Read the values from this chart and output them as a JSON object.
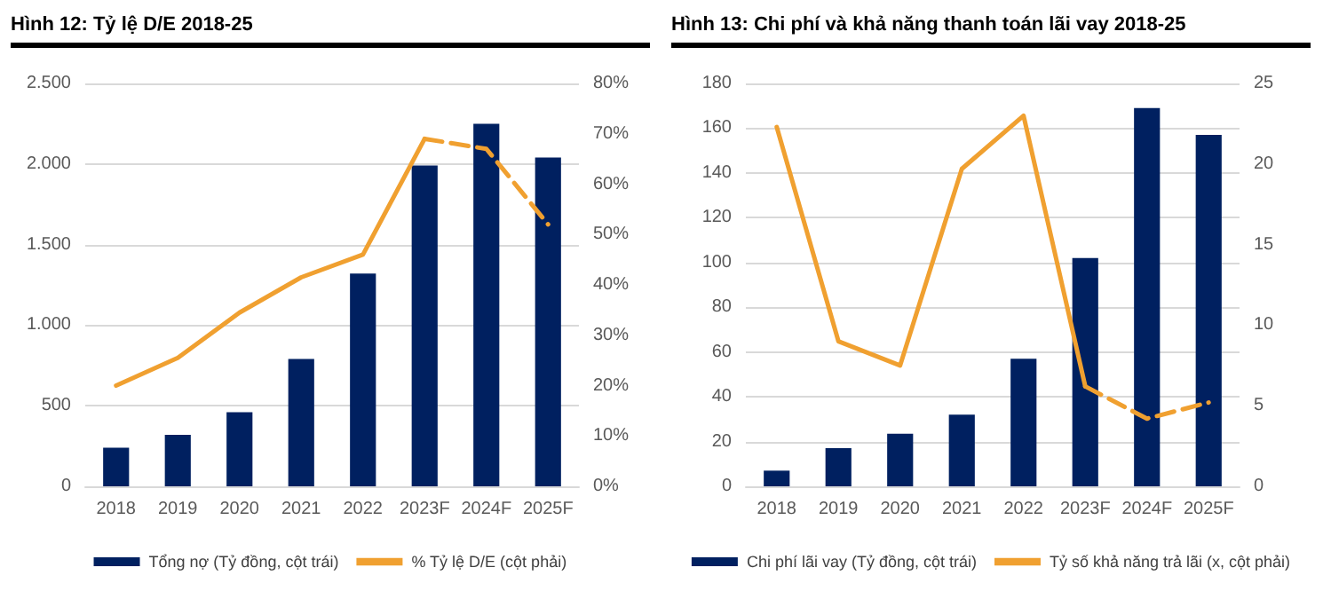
{
  "chart_data": [
    {
      "type": "bar",
      "title": "Hình 12: Tỷ lệ D/E 2018-25",
      "categories": [
        "2018",
        "2019",
        "2020",
        "2021",
        "2022",
        "2023F",
        "2024F",
        "2025F"
      ],
      "series": [
        {
          "name": "Tổng nợ (Tỷ đồng, cột trái)",
          "color": "#002060",
          "values": [
            240,
            320,
            460,
            790,
            1320,
            1990,
            2250,
            2040
          ]
        },
        {
          "type": "line",
          "name": "% Tỷ lệ D/E (cột phải)",
          "color": "#f0a030",
          "axis": "y2",
          "line_style": "solid",
          "values": [
            20,
            25.5,
            34.5,
            41.5,
            46,
            69,
            null,
            null
          ]
        },
        {
          "type": "line",
          "color": "#f0a030",
          "axis": "y2",
          "line_style": "dashed",
          "values": [
            null,
            null,
            null,
            null,
            null,
            69,
            67,
            52
          ]
        }
      ],
      "ylim": [
        0,
        2500
      ],
      "yticks": [
        {
          "value": 0,
          "label": "0"
        },
        {
          "value": 500,
          "label": "500"
        },
        {
          "value": 1000,
          "label": "1.000"
        },
        {
          "value": 1500,
          "label": "1.500"
        },
        {
          "value": 2000,
          "label": "2.000"
        },
        {
          "value": 2500,
          "label": "2.500"
        }
      ],
      "y2lim": [
        0,
        80
      ],
      "y2ticks": [
        {
          "value": 0,
          "label": "0%"
        },
        {
          "value": 10,
          "label": "10%"
        },
        {
          "value": 20,
          "label": "20%"
        },
        {
          "value": 30,
          "label": "30%"
        },
        {
          "value": 40,
          "label": "40%"
        },
        {
          "value": 50,
          "label": "50%"
        },
        {
          "value": 60,
          "label": "60%"
        },
        {
          "value": 70,
          "label": "70%"
        },
        {
          "value": 80,
          "label": "80%"
        }
      ],
      "grid": "y",
      "legend": "bottom",
      "marker": "none"
    },
    {
      "type": "bar",
      "title": "Hình 13: Chi phí và khả năng thanh toán lãi vay 2018-25",
      "categories": [
        "2018",
        "2019",
        "2020",
        "2021",
        "2022",
        "2023F",
        "2024F",
        "2025F"
      ],
      "series": [
        {
          "name": "Chi phí lãi vay (Tỷ đồng, cột trái)",
          "color": "#002060",
          "values": [
            7,
            17,
            23.5,
            32,
            57,
            102,
            169,
            157
          ]
        },
        {
          "type": "line",
          "name": "Tỷ số khả năng trả lãi (x, cột phải)",
          "color": "#f0a030",
          "axis": "y2",
          "line_style": "solid",
          "values": [
            22.3,
            9,
            7.5,
            19.7,
            23,
            6.2,
            null,
            null
          ]
        },
        {
          "type": "line",
          "color": "#f0a030",
          "axis": "y2",
          "line_style": "dashed",
          "values": [
            null,
            null,
            null,
            null,
            null,
            6.2,
            4.2,
            5.2
          ]
        }
      ],
      "ylim": [
        0,
        180
      ],
      "yticks": [
        0,
        20,
        40,
        60,
        80,
        100,
        120,
        140,
        160,
        180
      ],
      "y2lim": [
        0,
        25
      ],
      "y2ticks": [
        0,
        5,
        10,
        15,
        20,
        25
      ],
      "grid": "y",
      "legend": "bottom",
      "marker": "none"
    }
  ]
}
